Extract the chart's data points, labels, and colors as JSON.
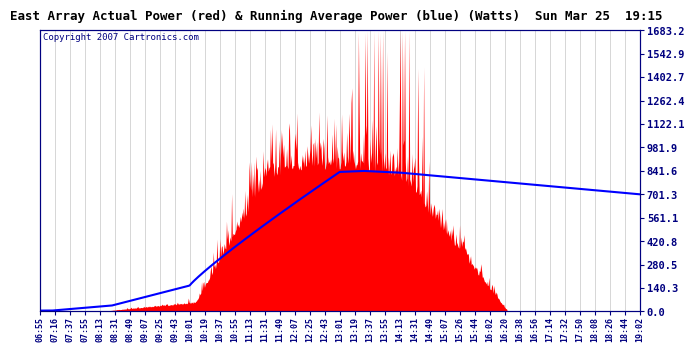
{
  "title": "East Array Actual Power (red) & Running Average Power (blue) (Watts)  Sun Mar 25  19:15",
  "copyright": "Copyright 2007 Cartronics.com",
  "ylabel_right_ticks": [
    0.0,
    140.3,
    280.5,
    420.8,
    561.1,
    701.3,
    841.6,
    981.9,
    1122.1,
    1262.4,
    1402.7,
    1542.9,
    1683.2
  ],
  "ymax": 1683.2,
  "ymin": 0.0,
  "background_color": "#ffffff",
  "plot_bg_color": "#ffffff",
  "bar_color": "#ff0000",
  "avg_line_color": "#0000ff",
  "grid_color": "#888888",
  "title_fontsize": 9,
  "copyright_fontsize": 6.5,
  "xtick_labels": [
    "06:55",
    "07:16",
    "07:37",
    "07:55",
    "08:13",
    "08:31",
    "08:49",
    "09:07",
    "09:25",
    "09:43",
    "10:01",
    "10:19",
    "10:37",
    "10:55",
    "11:13",
    "11:31",
    "11:49",
    "12:07",
    "12:25",
    "12:43",
    "13:01",
    "13:19",
    "13:37",
    "13:55",
    "14:13",
    "14:31",
    "14:49",
    "15:07",
    "15:26",
    "15:44",
    "16:02",
    "16:20",
    "16:38",
    "16:56",
    "17:14",
    "17:32",
    "17:50",
    "18:08",
    "18:26",
    "18:44",
    "19:02"
  ]
}
